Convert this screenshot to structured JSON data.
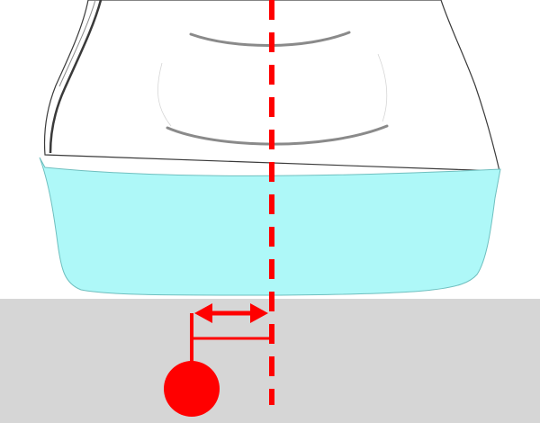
{
  "colors": {
    "background": "#ffffff",
    "ground": "#d6d6d6",
    "probe_body_fill": "#ffffff",
    "probe_sketch_stroke": "#3a3a3a",
    "probe_shading": "#8a8a8a",
    "probe_footprint": "#aef8f8",
    "footprint_stroke": "#6fbfbf",
    "center_line": "#ff0000",
    "target_dot": "#ff0000",
    "offset_arrow": "#ff0000"
  },
  "diagram": {
    "elements": [
      "ultrasound-probe-sketch",
      "probe-contact-footprint",
      "skin-surface",
      "probe-center-line",
      "target-marker",
      "lateral-offset-arrow"
    ]
  }
}
